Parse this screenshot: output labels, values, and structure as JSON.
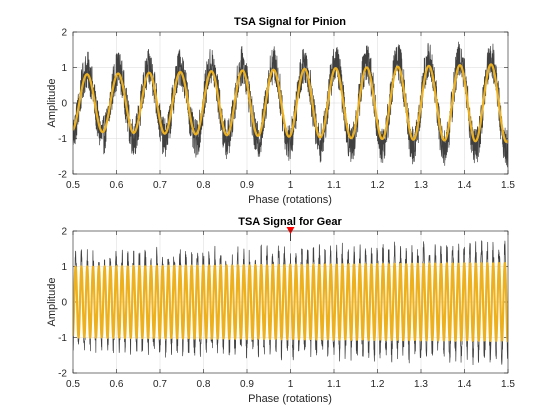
{
  "figure": {
    "background": "#ffffff"
  },
  "chart_data": [
    {
      "type": "line",
      "title": "TSA Signal for Pinion",
      "xlabel": "Phase (rotations)",
      "ylabel": "Amplitude",
      "xlim": [
        0.5,
        1.5
      ],
      "ylim": [
        -2,
        2
      ],
      "x_ticks": [
        "0.5",
        "0.6",
        "0.7",
        "0.8",
        "0.9",
        "1",
        "1.1",
        "1.2",
        "1.3",
        "1.4",
        "1.5"
      ],
      "y_ticks": [
        "-2",
        "-1",
        "0",
        "1",
        "2"
      ],
      "grid": true,
      "series": [
        {
          "role": "raw-signal",
          "color": "#404040",
          "sinusoid": {
            "cycles": 14,
            "amp_start": 0.9,
            "amp_end": 1.3,
            "noise_envelope": 0.55
          }
        },
        {
          "role": "filtered-signal",
          "color": "#EDB120",
          "sinusoid": {
            "cycles": 14,
            "amp_start": 0.8,
            "amp_end": 1.1
          }
        }
      ]
    },
    {
      "type": "line",
      "title": "TSA Signal for Gear",
      "xlabel": "Phase (rotations)",
      "ylabel": "Amplitude",
      "xlim": [
        0.5,
        1.5
      ],
      "ylim": [
        -2,
        2
      ],
      "x_ticks": [
        "0.5",
        "0.6",
        "0.7",
        "0.8",
        "0.9",
        "1",
        "1.1",
        "1.2",
        "1.3",
        "1.4",
        "1.5"
      ],
      "y_ticks": [
        "-2",
        "-1",
        "0",
        "1",
        "2"
      ],
      "grid": true,
      "series": [
        {
          "role": "raw-signal",
          "color": "#404040",
          "sinusoid": {
            "cycles": 75,
            "amp_start": 1.15,
            "amp_end": 1.45,
            "noise_envelope": 0.35
          }
        },
        {
          "role": "filtered-signal",
          "color": "#EDB120",
          "sinusoid": {
            "cycles": 75,
            "amp_start": 1.0,
            "amp_end": 1.1
          }
        }
      ],
      "marker": {
        "x": 1.0,
        "y": 2.0,
        "shape": "triangle-down",
        "color": "#ff0000"
      }
    }
  ]
}
